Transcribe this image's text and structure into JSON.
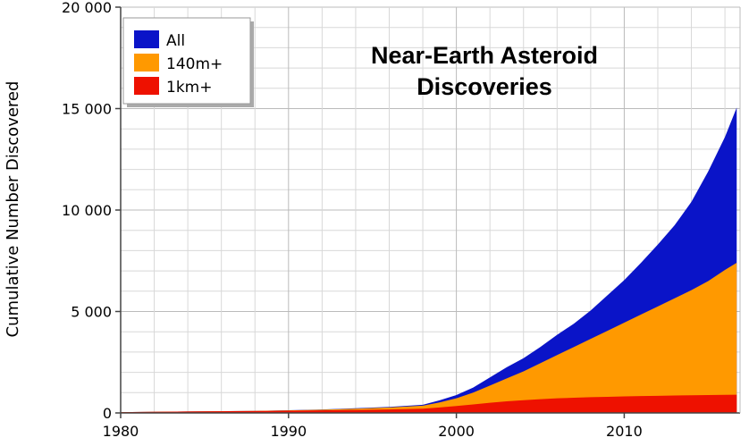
{
  "chart_data": {
    "type": "area",
    "title_lines": [
      "Near-Earth Asteroid",
      "Discoveries"
    ],
    "xlabel": "",
    "ylabel": "Cumulative Number Discovered",
    "xlim": [
      1980,
      2016.9
    ],
    "ylim": [
      0,
      20000
    ],
    "x_ticks": [
      1980,
      1990,
      2000,
      2010
    ],
    "x_tick_labels": [
      "1980",
      "1990",
      "2000",
      "2010"
    ],
    "y_ticks": [
      0,
      5000,
      10000,
      15000,
      20000
    ],
    "y_tick_labels": [
      "0",
      "5 000",
      "10 000",
      "15 000",
      "20 000"
    ],
    "grid": true,
    "legend_position": "top-left",
    "x": [
      1980,
      1982,
      1984,
      1986,
      1988,
      1990,
      1992,
      1994,
      1996,
      1998,
      1999,
      2000,
      2001,
      2002,
      2003,
      2004,
      2005,
      2006,
      2007,
      2008,
      2009,
      2010,
      2011,
      2012,
      2013,
      2014,
      2015,
      2016,
      2016.7
    ],
    "series": [
      {
        "name": "All",
        "color": "#0a14c8",
        "values": [
          40,
          55,
          70,
          85,
          100,
          130,
          170,
          230,
          300,
          400,
          620,
          880,
          1250,
          1750,
          2250,
          2700,
          3250,
          3850,
          4400,
          5050,
          5800,
          6550,
          7400,
          8300,
          9250,
          10400,
          11900,
          13600,
          15050
        ]
      },
      {
        "name": "140m+",
        "color": "#ff9900",
        "values": [
          40,
          55,
          70,
          85,
          100,
          125,
          160,
          210,
          270,
          360,
          520,
          720,
          1000,
          1350,
          1700,
          2050,
          2450,
          2850,
          3250,
          3650,
          4050,
          4450,
          4850,
          5250,
          5650,
          6050,
          6500,
          7050,
          7400
        ]
      },
      {
        "name": "1km+",
        "color": "#ee1100",
        "values": [
          40,
          55,
          70,
          85,
          95,
          110,
          125,
          145,
          170,
          210,
          270,
          340,
          420,
          500,
          570,
          630,
          680,
          720,
          750,
          775,
          795,
          815,
          830,
          845,
          860,
          870,
          880,
          890,
          900
        ]
      }
    ]
  }
}
